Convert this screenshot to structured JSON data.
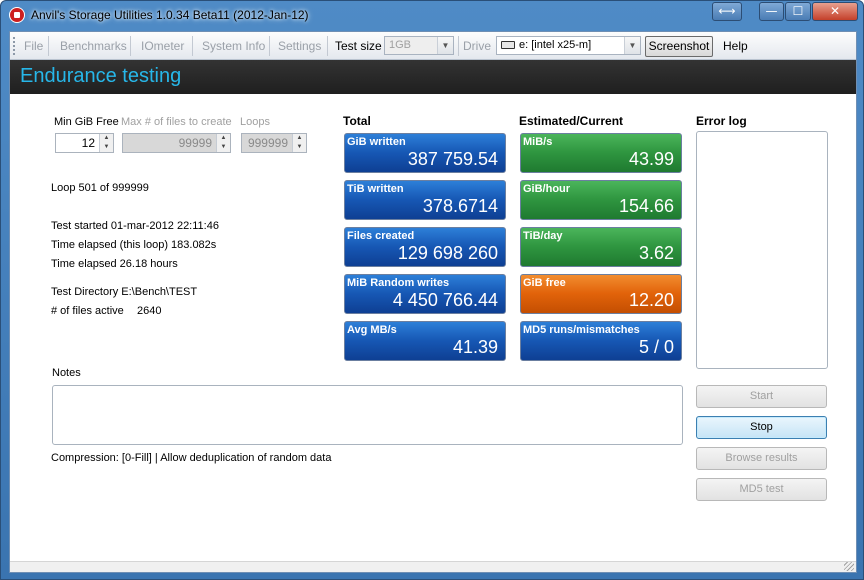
{
  "window": {
    "title": "Anvil's Storage Utilities 1.0.34 Beta11 (2012-Jan-12)",
    "swap_glyph": "⟷",
    "min_glyph": "—",
    "max_glyph": "☐",
    "close_glyph": "✕"
  },
  "menu": {
    "file": "File",
    "benchmarks": "Benchmarks",
    "iometer": "IOmeter",
    "system_info": "System Info",
    "settings": "Settings",
    "test_size_label": "Test size",
    "test_size_value": "1GB",
    "drive_label": "Drive",
    "drive_value": "e: [intel x25-m]",
    "screenshot": "Screenshot",
    "help": "Help"
  },
  "header": {
    "title": "Endurance testing"
  },
  "params": {
    "min_gib_free_label": "Min GiB Free",
    "min_gib_free_value": "12",
    "max_files_label": "Max # of files to create",
    "max_files_value": "99999",
    "loops_label": "Loops",
    "loops_value": "999999"
  },
  "info": {
    "loop": "Loop 501 of 999999",
    "test_started": "Test started 01-mar-2012 22:11:46",
    "elapsed_loop": "Time elapsed (this loop) 183.082s",
    "elapsed_total": "Time elapsed 26.18 hours",
    "test_dir": "Test Directory E:\\Bench\\TEST",
    "files_active_label": "# of files active",
    "files_active_value": "2640"
  },
  "totals": {
    "title": "Total",
    "tiles": [
      {
        "label": "GiB written",
        "value": "387 759.54"
      },
      {
        "label": "TiB written",
        "value": "378.6714"
      },
      {
        "label": "Files created",
        "value": "129 698 260"
      },
      {
        "label": "MiB Random writes",
        "value": "4 450 766.44"
      },
      {
        "label": "Avg MB/s",
        "value": "41.39"
      }
    ]
  },
  "estimated": {
    "title": "Estimated/Current",
    "tiles": [
      {
        "label": "MiB/s",
        "value": "43.99"
      },
      {
        "label": "GiB/hour",
        "value": "154.66"
      },
      {
        "label": "TiB/day",
        "value": "3.62"
      },
      {
        "label": "GiB free",
        "value": "12.20"
      },
      {
        "label": "MD5 runs/mismatches",
        "value": "5 / 0"
      }
    ]
  },
  "error_log": {
    "title": "Error log"
  },
  "notes": {
    "label": "Notes"
  },
  "compression": "Compression: [0-Fill]  |  Allow deduplication of random data",
  "buttons": {
    "start": "Start",
    "stop": "Stop",
    "browse": "Browse results",
    "md5": "MD5 test"
  },
  "colors": {
    "accent_title": "#27b7e9",
    "tile_blue": "#1758b5",
    "tile_green": "#2f9640",
    "tile_orange": "#e2630a"
  }
}
